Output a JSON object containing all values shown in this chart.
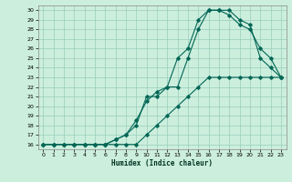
{
  "xlabel": "Humidex (Indice chaleur)",
  "background_color": "#cceedd",
  "grid_color": "#99ccbb",
  "line_color": "#006655",
  "xlim": [
    -0.5,
    23.5
  ],
  "ylim": [
    15.5,
    30.5
  ],
  "xticks": [
    0,
    1,
    2,
    3,
    4,
    5,
    6,
    7,
    8,
    9,
    10,
    11,
    12,
    13,
    14,
    15,
    16,
    17,
    18,
    19,
    20,
    21,
    22,
    23
  ],
  "yticks": [
    16,
    17,
    18,
    19,
    20,
    21,
    22,
    23,
    24,
    25,
    26,
    27,
    28,
    29,
    30
  ],
  "line1_x": [
    0,
    1,
    2,
    3,
    4,
    5,
    6,
    7,
    8,
    9,
    10,
    11,
    12,
    13,
    14,
    15,
    16,
    17,
    18,
    19,
    20,
    21,
    22,
    23
  ],
  "line1_y": [
    16,
    16,
    16,
    16,
    16,
    16,
    16,
    16,
    16,
    16,
    17,
    18,
    19,
    20,
    21,
    22,
    23,
    23,
    23,
    23,
    23,
    23,
    23,
    23
  ],
  "line2_x": [
    0,
    1,
    2,
    3,
    4,
    5,
    6,
    7,
    8,
    9,
    10,
    11,
    12,
    13,
    14,
    15,
    16,
    17,
    18,
    19,
    20,
    21,
    22,
    23
  ],
  "line2_y": [
    16,
    16,
    16,
    16,
    16,
    16,
    16,
    16.5,
    17,
    18,
    21,
    21,
    22,
    25,
    26,
    29,
    30,
    30,
    30,
    29,
    28.5,
    25,
    24,
    23
  ],
  "line3_x": [
    0,
    1,
    2,
    3,
    4,
    5,
    6,
    7,
    8,
    9,
    10,
    11,
    12,
    13,
    14,
    15,
    16,
    17,
    18,
    19,
    20,
    21,
    22,
    23
  ],
  "line3_y": [
    16,
    16,
    16,
    16,
    16,
    16,
    16,
    16.5,
    17,
    18.5,
    20.5,
    21.5,
    22,
    22,
    25,
    28,
    30,
    30,
    29.5,
    28.5,
    28,
    26,
    25,
    23
  ]
}
